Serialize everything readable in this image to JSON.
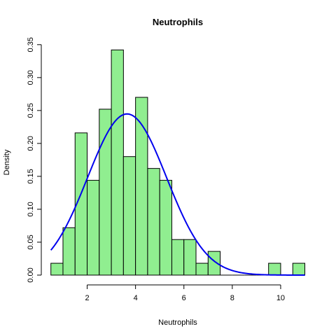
{
  "chart_data": {
    "type": "bar",
    "subtype": "histogram-with-density-curve",
    "title": "Neutrophils",
    "xlabel": "Neutrophils",
    "ylabel": "Density",
    "xlim": [
      0.5,
      11
    ],
    "ylim": [
      0,
      0.35
    ],
    "x_ticks": [
      2,
      4,
      6,
      8,
      10
    ],
    "x_tick_labels": [
      "2",
      "4",
      "6",
      "8",
      "10"
    ],
    "y_ticks": [
      0,
      0.05,
      0.1,
      0.15,
      0.2,
      0.25,
      0.3,
      0.35
    ],
    "y_tick_labels": [
      "0.00",
      "0.05",
      "0.10",
      "0.15",
      "0.20",
      "0.25",
      "0.30",
      "0.35"
    ],
    "bin_width": 0.5,
    "bins": [
      {
        "x0": 0.5,
        "x1": 1.0,
        "density": 0.018
      },
      {
        "x0": 1.0,
        "x1": 1.5,
        "density": 0.072
      },
      {
        "x0": 1.5,
        "x1": 2.0,
        "density": 0.216
      },
      {
        "x0": 2.0,
        "x1": 2.5,
        "density": 0.144
      },
      {
        "x0": 2.5,
        "x1": 3.0,
        "density": 0.252
      },
      {
        "x0": 3.0,
        "x1": 3.5,
        "density": 0.342
      },
      {
        "x0": 3.5,
        "x1": 4.0,
        "density": 0.18
      },
      {
        "x0": 4.0,
        "x1": 4.5,
        "density": 0.27
      },
      {
        "x0": 4.5,
        "x1": 5.0,
        "density": 0.162
      },
      {
        "x0": 5.0,
        "x1": 5.5,
        "density": 0.144
      },
      {
        "x0": 5.5,
        "x1": 6.0,
        "density": 0.054
      },
      {
        "x0": 6.0,
        "x1": 6.5,
        "density": 0.054
      },
      {
        "x0": 6.5,
        "x1": 7.0,
        "density": 0.018
      },
      {
        "x0": 7.0,
        "x1": 7.5,
        "density": 0.036
      },
      {
        "x0": 7.5,
        "x1": 8.0,
        "density": 0
      },
      {
        "x0": 8.0,
        "x1": 8.5,
        "density": 0
      },
      {
        "x0": 8.5,
        "x1": 9.0,
        "density": 0
      },
      {
        "x0": 9.0,
        "x1": 9.5,
        "density": 0
      },
      {
        "x0": 9.5,
        "x1": 10.0,
        "density": 0.018
      },
      {
        "x0": 10.0,
        "x1": 10.5,
        "density": 0
      },
      {
        "x0": 10.5,
        "x1": 11.0,
        "density": 0.018
      }
    ],
    "density_curve": {
      "distribution": "normal",
      "mean": 3.65,
      "sd": 1.63,
      "x_range": [
        0.5,
        11
      ]
    },
    "bar_fill_color": "#90ee90",
    "bar_stroke_color": "#000000",
    "curve_color": "#0000ee",
    "grid": false
  }
}
